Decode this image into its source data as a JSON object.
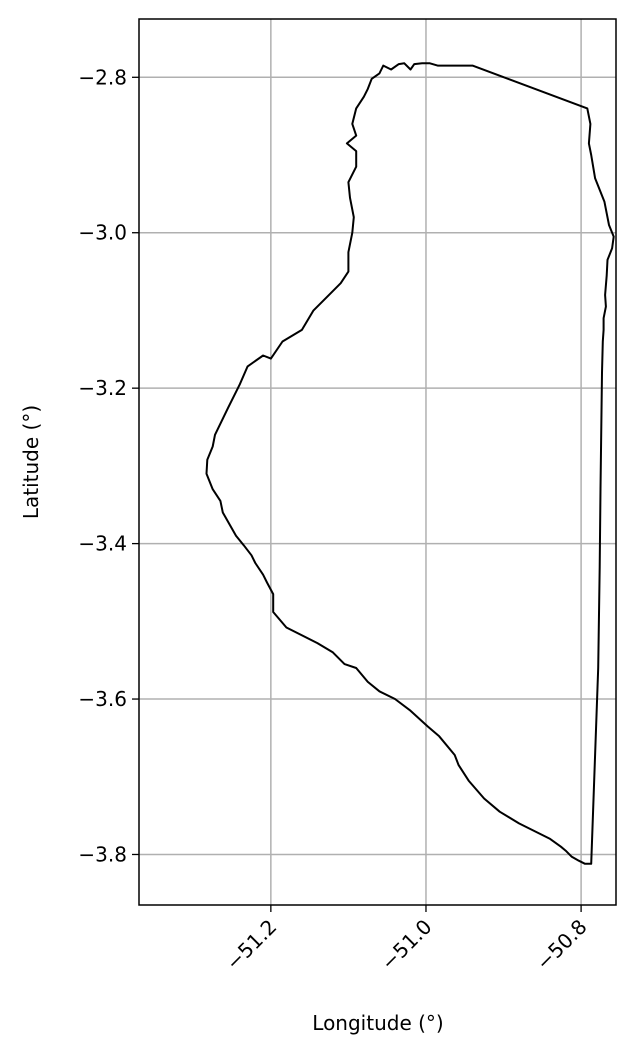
{
  "chart_data": {
    "type": "line",
    "title": "",
    "xlabel": "Longitude (°)",
    "ylabel": "Latitude (°)",
    "xlim": [
      -51.37,
      -50.755
    ],
    "ylim": [
      -3.865,
      -2.725
    ],
    "xticks": [
      -51.2,
      -51.0,
      -50.8
    ],
    "xtick_labels": [
      "−51.2",
      "−51.0",
      "−50.8"
    ],
    "yticks": [
      -2.8,
      -3.0,
      -3.2,
      -3.4,
      -3.6,
      -3.8
    ],
    "ytick_labels": [
      "−2.8",
      "−3.0",
      "−3.2",
      "−3.4",
      "−3.6",
      "−3.8"
    ],
    "grid": true,
    "line_color": "#000000",
    "grid_color": "#b0b0b0",
    "series": [
      {
        "x": [
          -50.94,
          -50.792,
          -50.788,
          -50.79,
          -50.787,
          -50.782,
          -50.77,
          -50.767,
          -50.764,
          -50.758,
          -50.76,
          -50.766,
          -50.767,
          -50.769,
          -50.768,
          -50.771,
          -50.771,
          -50.772,
          -50.773,
          -50.774,
          -50.775,
          -50.776,
          -50.778,
          -50.787,
          -50.795,
          -50.803,
          -50.812,
          -50.82,
          -50.826,
          -50.84,
          -50.88,
          -50.905,
          -50.925,
          -50.945,
          -50.958,
          -50.963,
          -50.983,
          -50.998,
          -51.02,
          -51.04,
          -51.06,
          -51.075,
          -51.09,
          -51.105,
          -51.12,
          -51.14,
          -51.18,
          -51.197,
          -51.197,
          -51.205,
          -51.21,
          -51.22,
          -51.225,
          -51.235,
          -51.245,
          -51.262,
          -51.265,
          -51.275,
          -51.283,
          -51.282,
          -51.275,
          -51.272,
          -51.255,
          -51.24,
          -51.23,
          -51.21,
          -51.2,
          -51.185,
          -51.16,
          -51.145,
          -51.125,
          -51.11,
          -51.1,
          -51.1,
          -51.095,
          -51.093,
          -51.098,
          -51.1,
          -51.09,
          -51.09,
          -51.102,
          -51.09,
          -51.095,
          -51.09,
          -51.08,
          -51.075,
          -51.07,
          -51.06,
          -51.055,
          -51.045,
          -51.035,
          -51.028,
          -51.02,
          -51.015,
          -51.005,
          -50.995,
          -50.985
        ],
        "y": [
          -2.785,
          -2.84,
          -2.86,
          -2.885,
          -2.9,
          -2.93,
          -2.96,
          -2.975,
          -2.99,
          -3.005,
          -3.02,
          -3.035,
          -3.055,
          -3.08,
          -3.095,
          -3.11,
          -3.125,
          -3.14,
          -3.18,
          -3.25,
          -3.33,
          -3.43,
          -3.56,
          -3.812,
          -3.812,
          -3.808,
          -3.803,
          -3.795,
          -3.79,
          -3.78,
          -3.76,
          -3.745,
          -3.728,
          -3.705,
          -3.685,
          -3.672,
          -3.648,
          -3.635,
          -3.615,
          -3.6,
          -3.59,
          -3.578,
          -3.56,
          -3.555,
          -3.54,
          -3.528,
          -3.508,
          -3.488,
          -3.465,
          -3.45,
          -3.44,
          -3.425,
          -3.415,
          -3.402,
          -3.39,
          -3.36,
          -3.345,
          -3.33,
          -3.31,
          -3.292,
          -3.275,
          -3.26,
          -3.225,
          -3.195,
          -3.172,
          -3.158,
          -3.162,
          -3.14,
          -3.125,
          -3.1,
          -3.08,
          -3.065,
          -3.05,
          -3.025,
          -3.0,
          -2.98,
          -2.955,
          -2.935,
          -2.915,
          -2.895,
          -2.885,
          -2.875,
          -2.86,
          -2.84,
          -2.825,
          -2.815,
          -2.802,
          -2.795,
          -2.785,
          -2.79,
          -2.783,
          -2.782,
          -2.79,
          -2.783,
          -2.782,
          -2.782,
          -2.785
        ]
      }
    ]
  }
}
